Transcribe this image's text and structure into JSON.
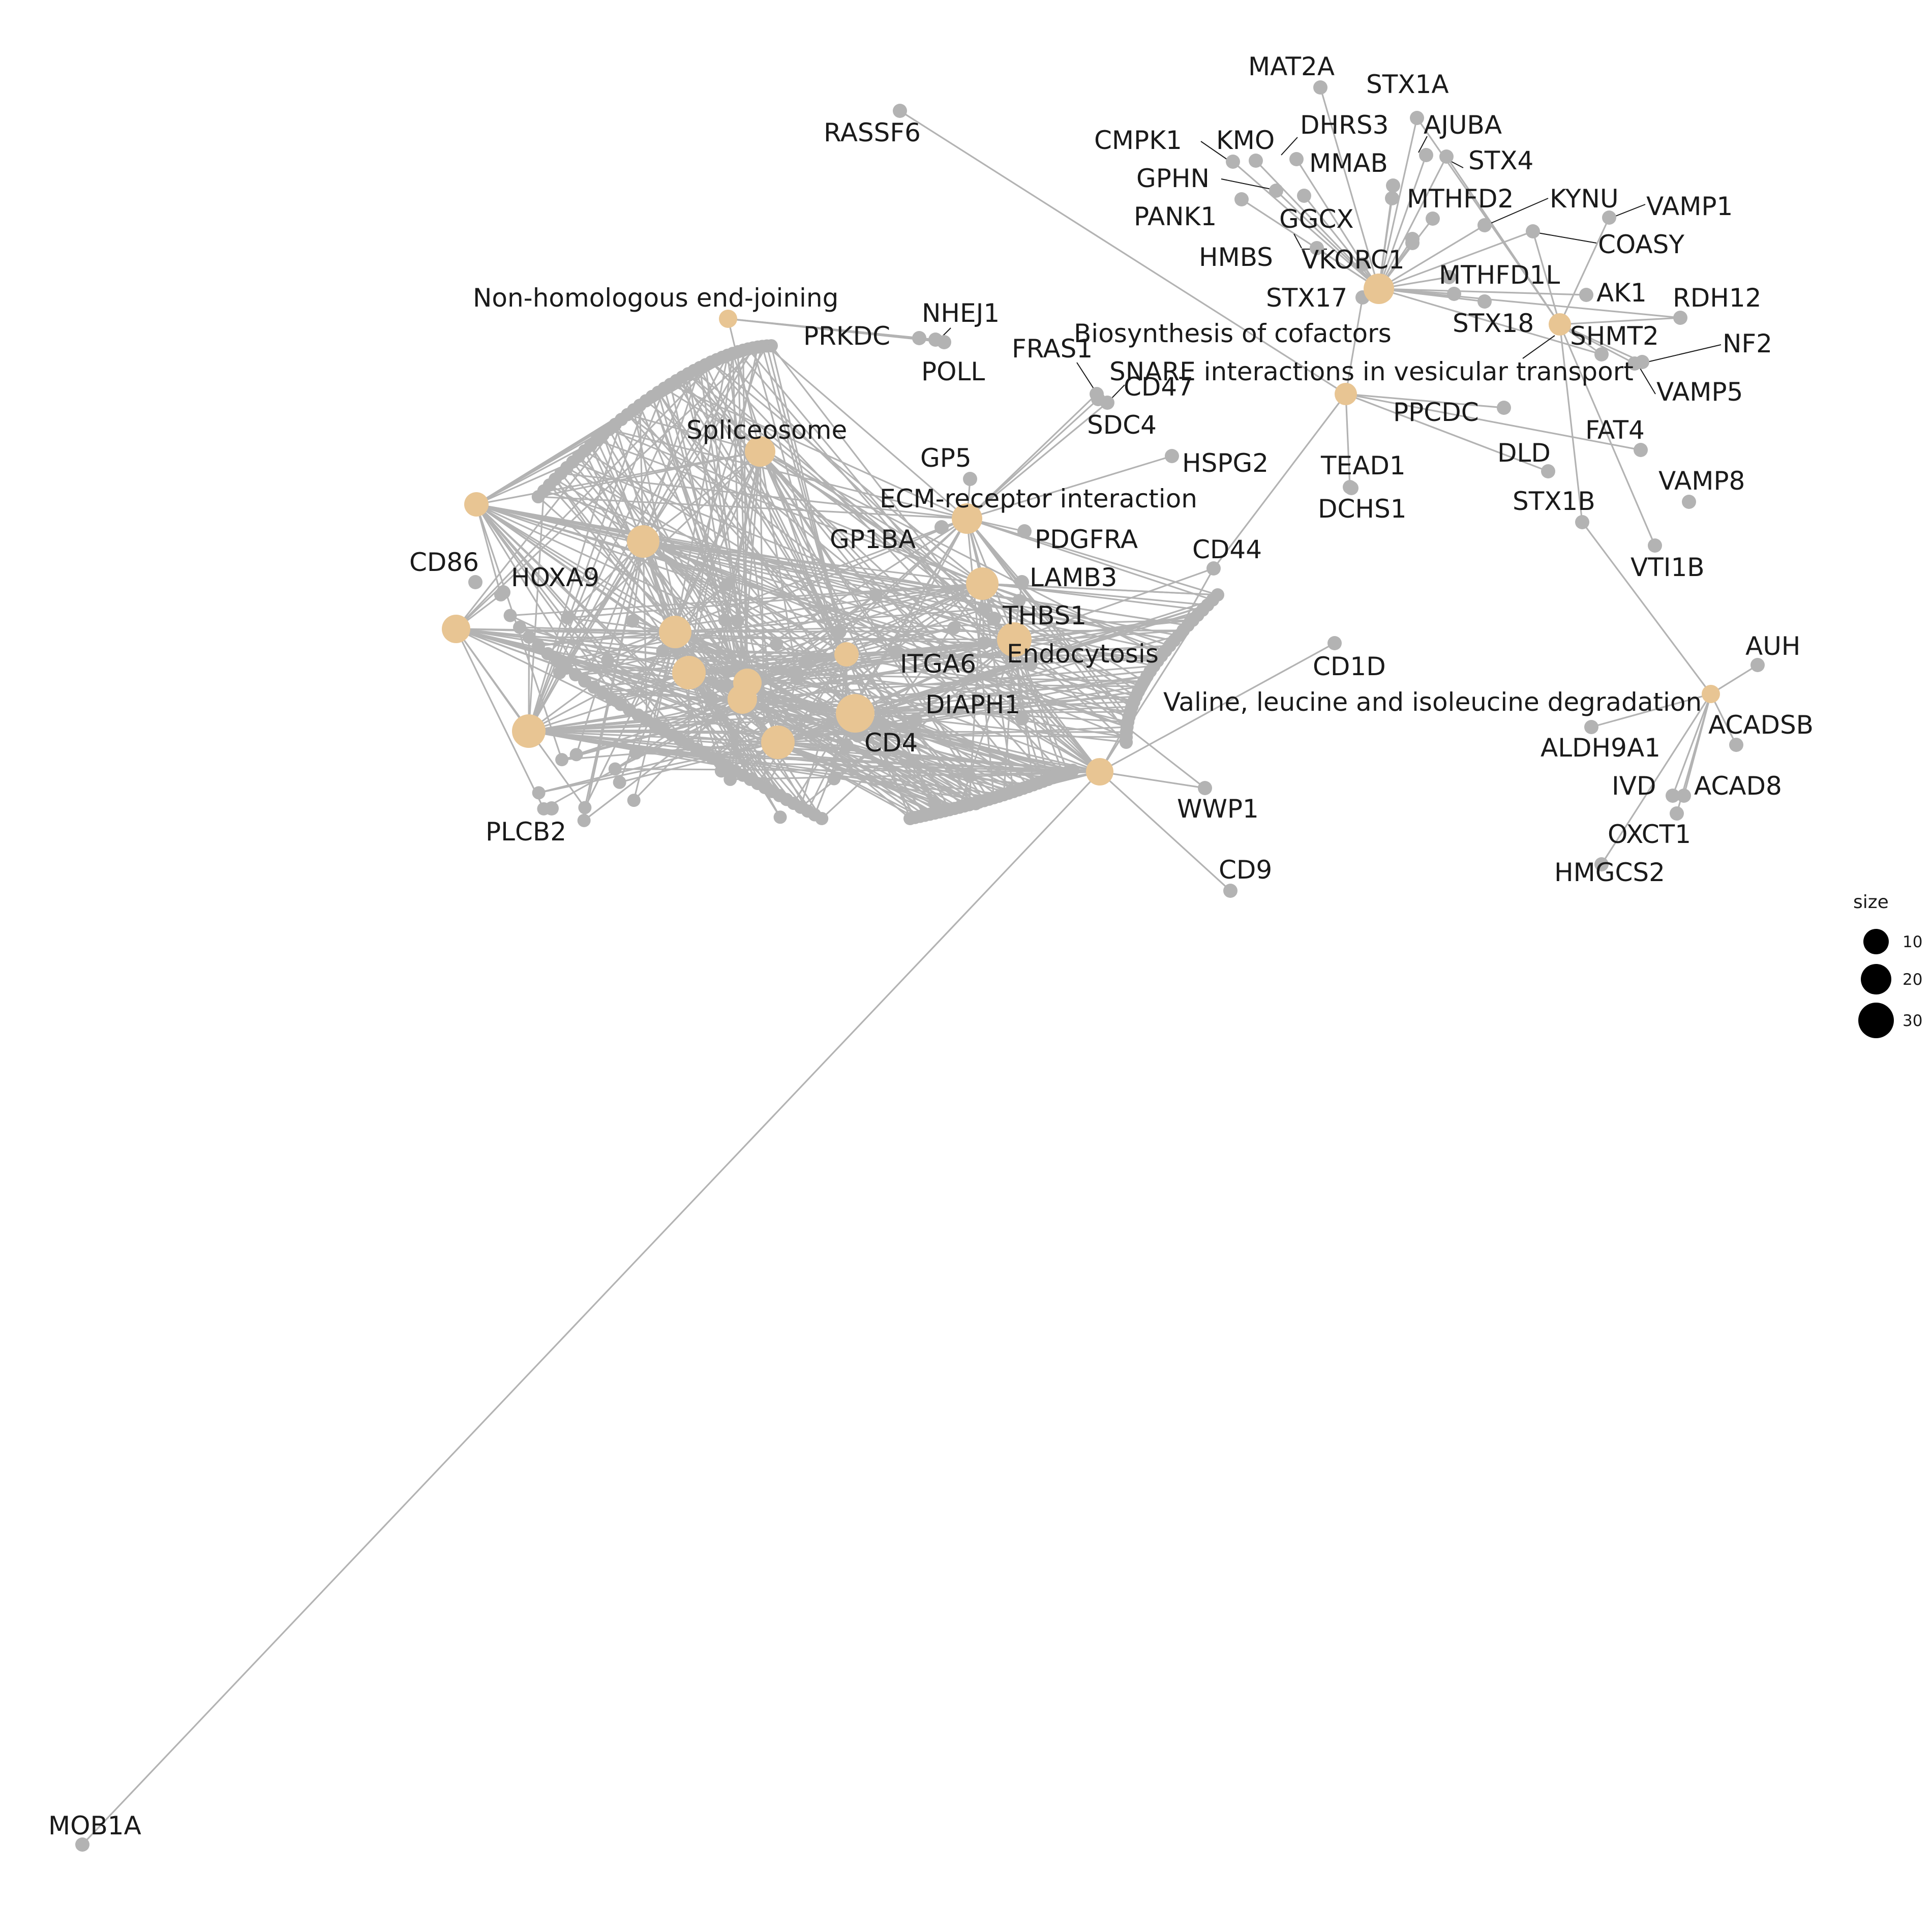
{
  "colors": {
    "category_node": "#e8c593",
    "gene_node": "#b3b3b3",
    "edge": "#b3b3b3",
    "text": "#1a1a1a"
  },
  "categories": {
    "nhej": "Non-homologous end-joining",
    "spliceosome": "Spliceosome",
    "ecm": "ECM-receptor interaction",
    "endocytosis": "Endocytosis",
    "cofactors": "Biosynthesis of cofactors",
    "snare": "SNARE interactions in vesicular transport",
    "valine": "Valine, leucine and isoleucine degradation"
  },
  "genes": {
    "MAT2A": "MAT2A",
    "STX1A": "STX1A",
    "RASSF6": "RASSF6",
    "DHRS3": "DHRS3",
    "AJUBA": "AJUBA",
    "CMPK1": "CMPK1",
    "KMO": "KMO",
    "MMAB": "MMAB",
    "STX4": "STX4",
    "GPHN": "GPHN",
    "MTHFD2": "MTHFD2",
    "KYNU": "KYNU",
    "VAMP1": "VAMP1",
    "PANK1": "PANK1",
    "GGCX": "GGCX",
    "COASY": "COASY",
    "HMBS": "HMBS",
    "VKORC1": "VKORC1",
    "MTHFD1L": "MTHFD1L",
    "STX17": "STX17",
    "AK1": "AK1",
    "RDH12": "RDH12",
    "NHEJ1": "NHEJ1",
    "STX18": "STX18",
    "PRKDC": "PRKDC",
    "SHMT2": "SHMT2",
    "NF2": "NF2",
    "FRAS1": "FRAS1",
    "POLL": "POLL",
    "CD47": "CD47",
    "VAMP5": "VAMP5",
    "PPCDC": "PPCDC",
    "SDC4": "SDC4",
    "FAT4": "FAT4",
    "DLD": "DLD",
    "GP5": "GP5",
    "HSPG2": "HSPG2",
    "TEAD1": "TEAD1",
    "VAMP8": "VAMP8",
    "STX1B": "STX1B",
    "DCHS1": "DCHS1",
    "GP1BA": "GP1BA",
    "PDGFRA": "PDGFRA",
    "CD86": "CD86",
    "CD44": "CD44",
    "VTI1B": "VTI1B",
    "HOXA9": "HOXA9",
    "LAMB3": "LAMB3",
    "THBS1": "THBS1",
    "AUH": "AUH",
    "CD1D": "CD1D",
    "ITGA6": "ITGA6",
    "DIAPH1": "DIAPH1",
    "ACADSB": "ACADSB",
    "ALDH9A1": "ALDH9A1",
    "CD4": "CD4",
    "IVD": "IVD",
    "ACAD8": "ACAD8",
    "WWP1": "WWP1",
    "OXCT1": "OXCT1",
    "PLCB2": "PLCB2",
    "HMGCS2": "HMGCS2",
    "CD9": "CD9",
    "MOB1A": "MOB1A"
  },
  "legend": {
    "title": "size",
    "items": [
      "10",
      "20",
      "30"
    ]
  }
}
